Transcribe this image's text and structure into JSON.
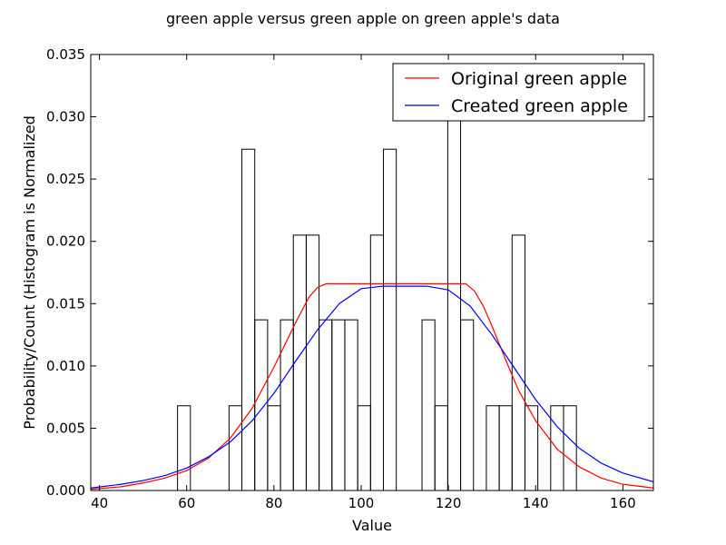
{
  "chart_data": {
    "type": "bar",
    "title": "green apple versus green apple on green apple's data",
    "xlabel": "Value",
    "ylabel": "Probability/Count (Histogram is Normalized",
    "xlim": [
      38,
      167
    ],
    "ylim": [
      0,
      0.035
    ],
    "xticks": [
      "40",
      "60",
      "80",
      "100",
      "120",
      "140",
      "160"
    ],
    "xtick_values": [
      40,
      60,
      80,
      100,
      120,
      140,
      160
    ],
    "yticks": [
      "0.000",
      "0.005",
      "0.010",
      "0.015",
      "0.020",
      "0.025",
      "0.030",
      "0.035"
    ],
    "ytick_values": [
      0,
      0.005,
      0.01,
      0.015,
      0.02,
      0.025,
      0.03,
      0.035
    ],
    "grid": false,
    "legend_position": "top-right",
    "histogram": {
      "bin_start": 57.9,
      "bin_width": 2.95,
      "heights": [
        0.0068,
        0,
        0,
        0,
        0.0068,
        0.0274,
        0.0137,
        0.0068,
        0.0137,
        0.0205,
        0.0205,
        0.0137,
        0.0137,
        0.0137,
        0.0068,
        0.0205,
        0.0274,
        0,
        0,
        0.0137,
        0.0068,
        0.0342,
        0.0137,
        0,
        0.0068,
        0.0068,
        0.0205,
        0.0068,
        0,
        0.0068,
        0.0068
      ],
      "edge_color": "#000000"
    },
    "series": [
      {
        "name": "Original green apple",
        "color": "#ff0000",
        "x": [
          38,
          45,
          50,
          55,
          60,
          65,
          70,
          75,
          80,
          85,
          88,
          90,
          92,
          95,
          100,
          105,
          110,
          115,
          120,
          124,
          126,
          128,
          130,
          133,
          136,
          140,
          145,
          150,
          155,
          160,
          167
        ],
        "y": [
          0.0001,
          0.0003,
          0.0006,
          0.001,
          0.0016,
          0.0026,
          0.0042,
          0.0066,
          0.0099,
          0.0135,
          0.0155,
          0.0163,
          0.0166,
          0.0166,
          0.0166,
          0.0166,
          0.0166,
          0.0166,
          0.0166,
          0.0166,
          0.016,
          0.0148,
          0.0132,
          0.0106,
          0.0081,
          0.0056,
          0.0033,
          0.0019,
          0.001,
          0.0005,
          0.0002
        ]
      },
      {
        "name": "Created green apple",
        "color": "#0000ff",
        "x": [
          38,
          45,
          50,
          55,
          60,
          65,
          70,
          75,
          80,
          85,
          90,
          95,
          100,
          105,
          110,
          115,
          120,
          125,
          130,
          135,
          140,
          145,
          150,
          155,
          160,
          167
        ],
        "y": [
          0.0002,
          0.0005,
          0.0008,
          0.0012,
          0.0018,
          0.0027,
          0.0039,
          0.0056,
          0.0078,
          0.0104,
          0.0129,
          0.015,
          0.0162,
          0.0164,
          0.0164,
          0.0164,
          0.0161,
          0.0148,
          0.0125,
          0.0099,
          0.0073,
          0.0051,
          0.0034,
          0.0022,
          0.0014,
          0.0007
        ]
      }
    ]
  }
}
